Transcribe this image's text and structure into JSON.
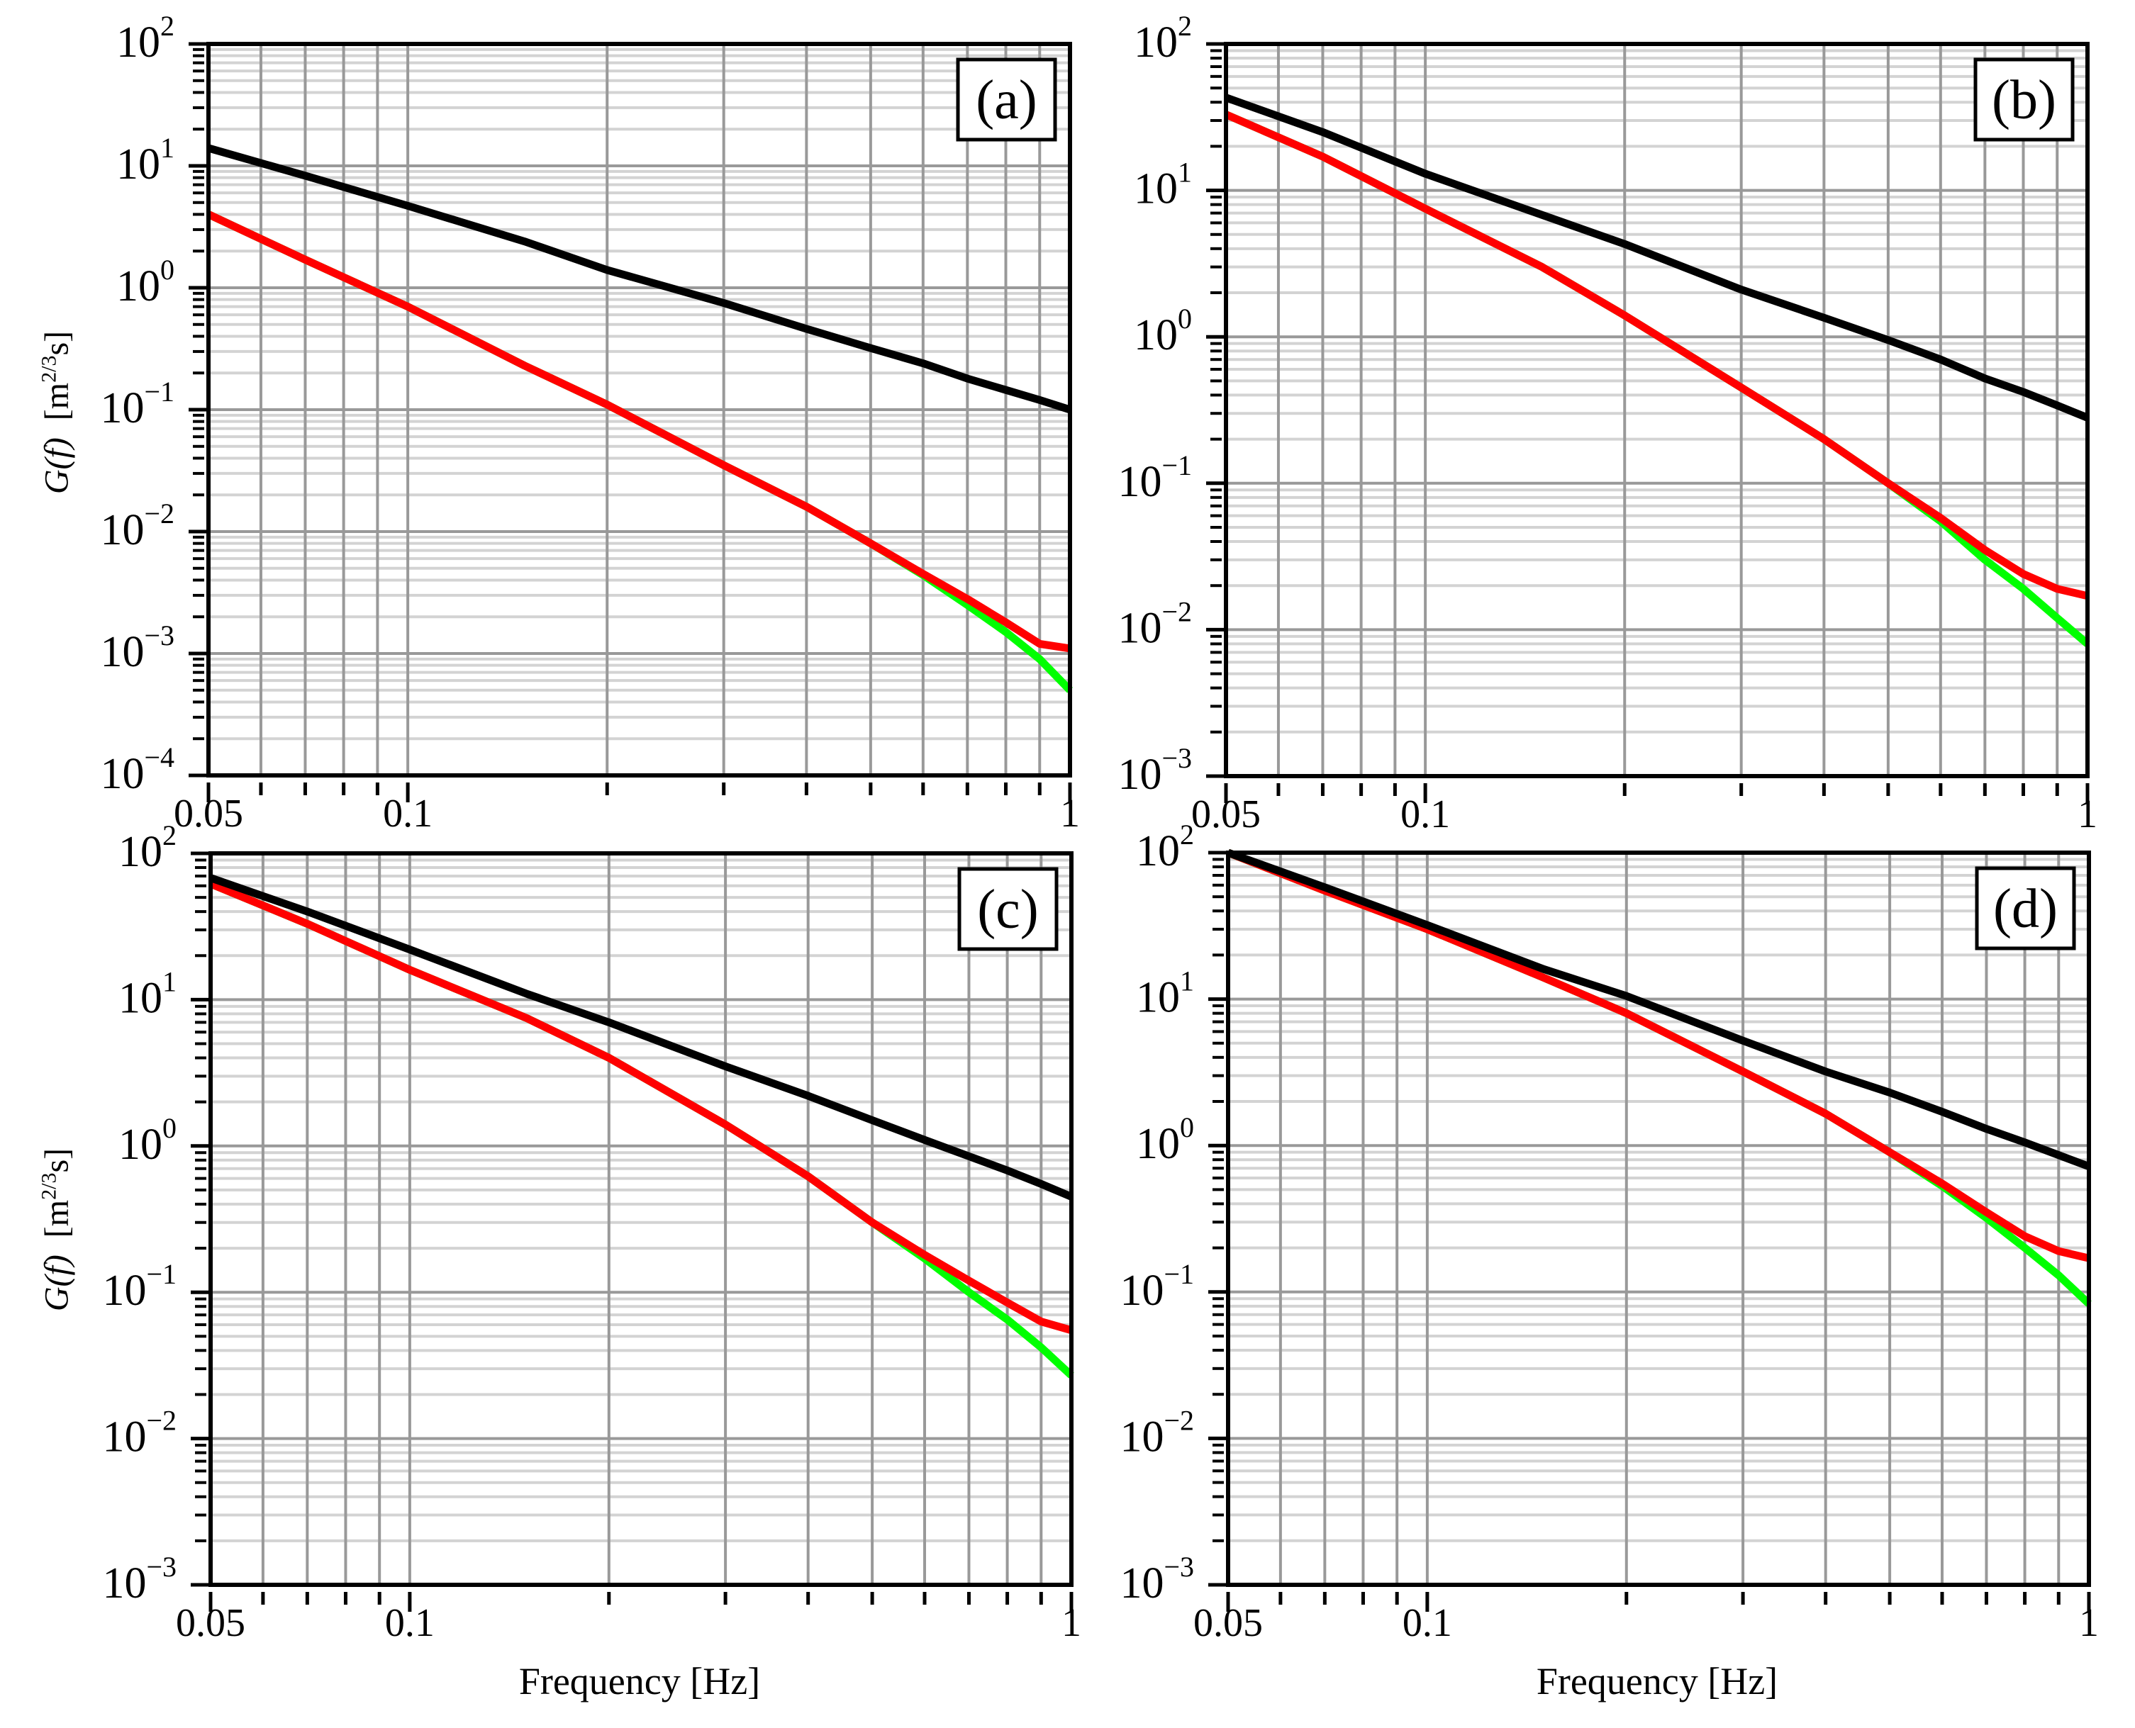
{
  "figure": {
    "x_axis_label": "Frequency [Hz]",
    "y_axis_label_func": "G(f)",
    "y_axis_label_unit_pre": "[m",
    "y_axis_label_unit_sup": "2/3",
    "y_axis_label_unit_post": "s]"
  },
  "colors": {
    "black_series": "#000000",
    "red_series": "#ff0000",
    "green_series": "#00ff00",
    "major_grid": "#999999",
    "minor_grid": "#d3d3d3"
  },
  "chart_data": [
    {
      "type": "line",
      "panel": "(a)",
      "title": "(a)",
      "xlabel": "",
      "ylabel": "G(f) [m^2/3 s]",
      "xscale": "log",
      "yscale": "log",
      "xlim": [
        0.05,
        1
      ],
      "ylim": [
        0.0001,
        100
      ],
      "x_ticks": [
        "0.05",
        "0.1",
        "1"
      ],
      "y_ticks": [
        "10^2",
        "10^1",
        "10^0",
        "10^-1",
        "10^-2",
        "10^-3",
        "10^-4"
      ],
      "grid": true,
      "x": [
        0.05,
        0.07,
        0.1,
        0.15,
        0.2,
        0.3,
        0.4,
        0.5,
        0.6,
        0.7,
        0.8,
        0.9,
        1.0
      ],
      "series": [
        {
          "name": "black",
          "color": "#000000",
          "values": [
            14,
            8.3,
            4.7,
            2.4,
            1.4,
            0.75,
            0.46,
            0.32,
            0.24,
            0.18,
            0.145,
            0.12,
            0.1
          ]
        },
        {
          "name": "red",
          "color": "#ff0000",
          "values": [
            4.0,
            1.7,
            0.7,
            0.23,
            0.11,
            0.035,
            0.016,
            0.008,
            0.0045,
            0.0028,
            0.0018,
            0.0012,
            0.0011
          ]
        },
        {
          "name": "green",
          "color": "#00ff00",
          "values": [
            4.0,
            1.7,
            0.7,
            0.23,
            0.11,
            0.035,
            0.016,
            0.008,
            0.0044,
            0.0025,
            0.0015,
            0.0009,
            0.0005
          ]
        }
      ]
    },
    {
      "type": "line",
      "panel": "(b)",
      "title": "(b)",
      "xlabel": "",
      "ylabel": "",
      "xscale": "log",
      "yscale": "log",
      "xlim": [
        0.05,
        1
      ],
      "ylim": [
        0.001,
        100
      ],
      "x_ticks": [
        "0.05",
        "0.1",
        "1"
      ],
      "y_ticks": [
        "10^2",
        "10^1",
        "10^0",
        "10^-1",
        "10^-2",
        "10^-3"
      ],
      "grid": true,
      "x": [
        0.05,
        0.07,
        0.1,
        0.15,
        0.2,
        0.3,
        0.4,
        0.5,
        0.6,
        0.7,
        0.8,
        0.9,
        1.0
      ],
      "series": [
        {
          "name": "black",
          "color": "#000000",
          "values": [
            43,
            25,
            13,
            6.8,
            4.3,
            2.1,
            1.35,
            0.95,
            0.7,
            0.52,
            0.42,
            0.34,
            0.28
          ]
        },
        {
          "name": "red",
          "color": "#ff0000",
          "values": [
            33,
            17,
            7.5,
            3.0,
            1.4,
            0.45,
            0.2,
            0.1,
            0.058,
            0.035,
            0.024,
            0.019,
            0.017
          ]
        },
        {
          "name": "green",
          "color": "#00ff00",
          "values": [
            33,
            17,
            7.5,
            3.0,
            1.4,
            0.45,
            0.2,
            0.1,
            0.055,
            0.03,
            0.019,
            0.012,
            0.008
          ]
        }
      ]
    },
    {
      "type": "line",
      "panel": "(c)",
      "title": "(c)",
      "xlabel": "Frequency [Hz]",
      "ylabel": "G(f) [m^2/3 s]",
      "xscale": "log",
      "yscale": "log",
      "xlim": [
        0.05,
        1
      ],
      "ylim": [
        0.001,
        100
      ],
      "x_ticks": [
        "0.05",
        "0.1",
        "1"
      ],
      "y_ticks": [
        "10^2",
        "10^1",
        "10^0",
        "10^-1",
        "10^-2",
        "10^-3"
      ],
      "grid": true,
      "x": [
        0.05,
        0.07,
        0.1,
        0.15,
        0.2,
        0.3,
        0.4,
        0.5,
        0.6,
        0.7,
        0.8,
        0.9,
        1.0
      ],
      "series": [
        {
          "name": "black",
          "color": "#000000",
          "values": [
            68,
            40,
            22,
            11,
            7,
            3.5,
            2.2,
            1.5,
            1.1,
            0.85,
            0.68,
            0.55,
            0.45
          ]
        },
        {
          "name": "red",
          "color": "#ff0000",
          "values": [
            62,
            33,
            16,
            7.5,
            4.0,
            1.4,
            0.62,
            0.3,
            0.18,
            0.12,
            0.085,
            0.063,
            0.055
          ]
        },
        {
          "name": "green",
          "color": "#00ff00",
          "values": [
            62,
            33,
            16,
            7.5,
            4.0,
            1.4,
            0.62,
            0.3,
            0.17,
            0.1,
            0.065,
            0.042,
            0.027
          ]
        }
      ]
    },
    {
      "type": "line",
      "panel": "(d)",
      "title": "(d)",
      "xlabel": "Frequency [Hz]",
      "ylabel": "",
      "xscale": "log",
      "yscale": "log",
      "xlim": [
        0.05,
        1
      ],
      "ylim": [
        0.001,
        100
      ],
      "x_ticks": [
        "0.05",
        "0.1",
        "1"
      ],
      "y_ticks": [
        "10^2",
        "10^1",
        "10^0",
        "10^-1",
        "10^-2",
        "10^-3"
      ],
      "grid": true,
      "x": [
        0.05,
        0.07,
        0.1,
        0.15,
        0.2,
        0.3,
        0.4,
        0.5,
        0.6,
        0.7,
        0.8,
        0.9,
        1.0
      ],
      "series": [
        {
          "name": "black",
          "color": "#000000",
          "values": [
            100,
            58,
            32,
            16,
            10.5,
            5.2,
            3.2,
            2.3,
            1.7,
            1.3,
            1.05,
            0.86,
            0.72
          ]
        },
        {
          "name": "red",
          "color": "#ff0000",
          "values": [
            100,
            55,
            30,
            14,
            8,
            3.2,
            1.65,
            0.9,
            0.55,
            0.35,
            0.24,
            0.19,
            0.17
          ]
        },
        {
          "name": "green",
          "color": "#00ff00",
          "values": [
            100,
            55,
            30,
            14,
            8,
            3.2,
            1.65,
            0.9,
            0.53,
            0.32,
            0.2,
            0.13,
            0.083
          ]
        }
      ]
    }
  ]
}
